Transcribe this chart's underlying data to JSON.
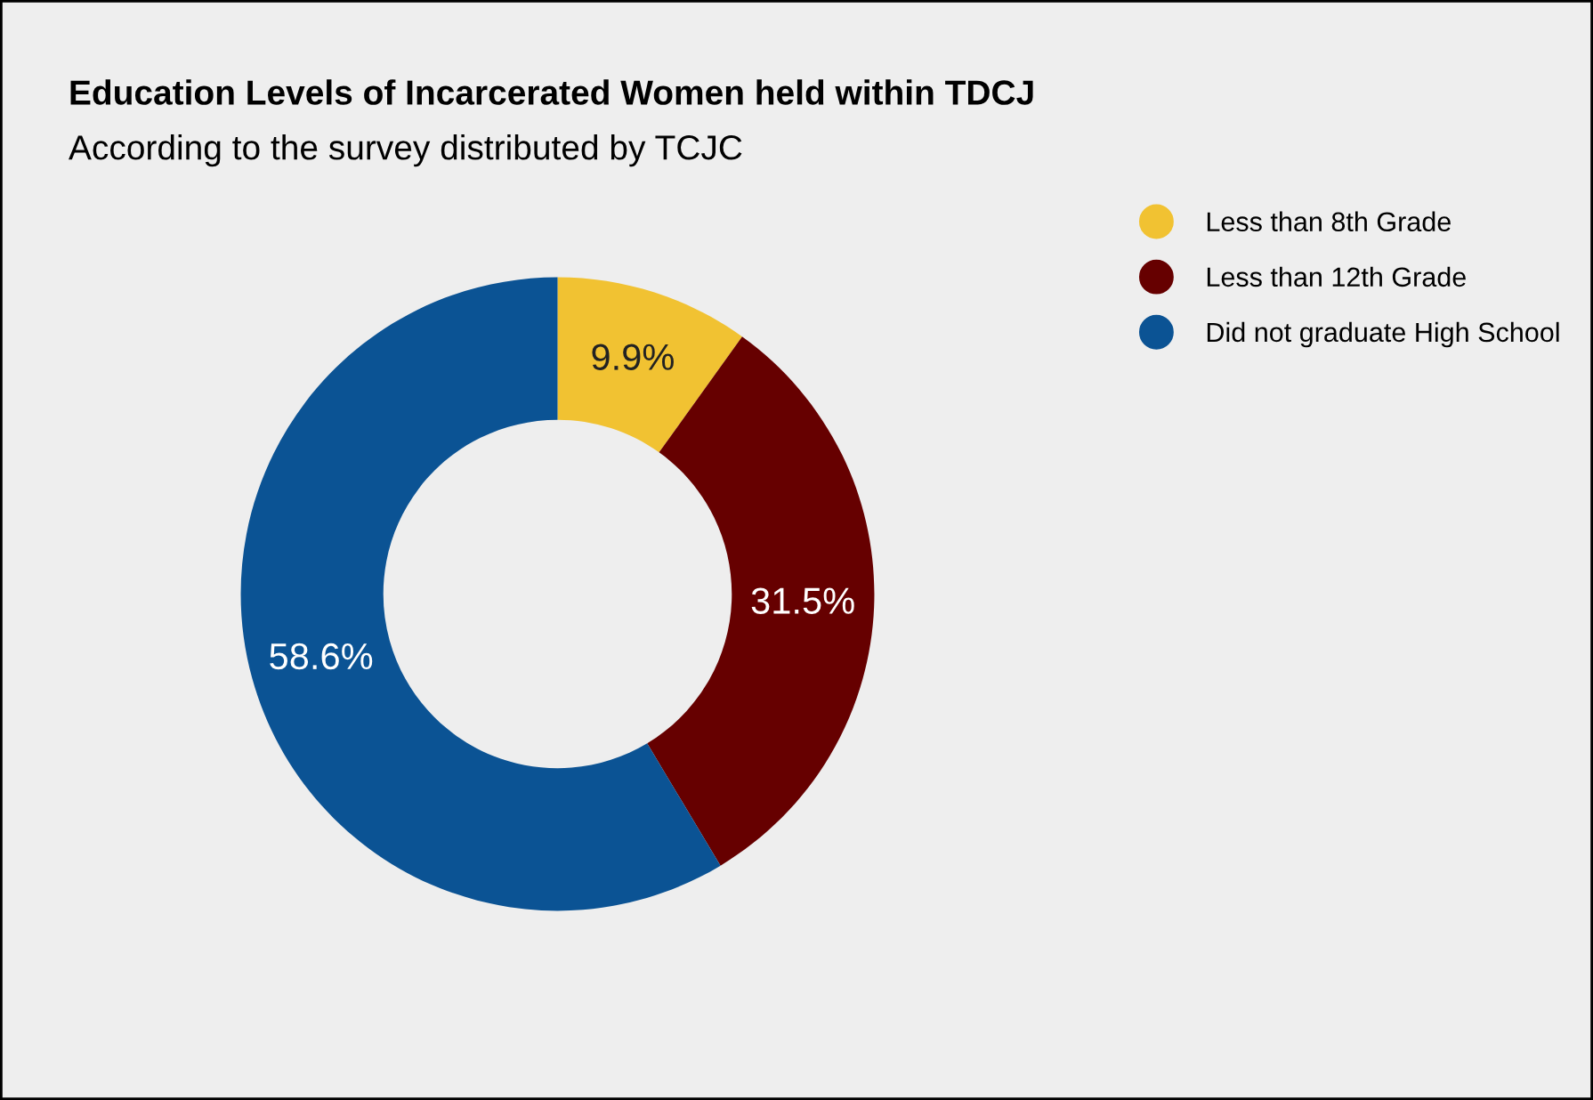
{
  "chart_data": {
    "type": "donut",
    "title": "Education Levels of Incarcerated Women held within TDCJ",
    "subtitle": "According to the survey distributed by TCJC",
    "categories": [
      "Less than 8th Grade",
      "Less than 12th Grade",
      "Did not graduate High School"
    ],
    "values": [
      9.9,
      31.5,
      58.6
    ],
    "colors": [
      "#f1c232",
      "#660000",
      "#0b5394"
    ],
    "value_labels": [
      "9.9%",
      "31.5%",
      "58.6%"
    ],
    "legend": "top right"
  }
}
